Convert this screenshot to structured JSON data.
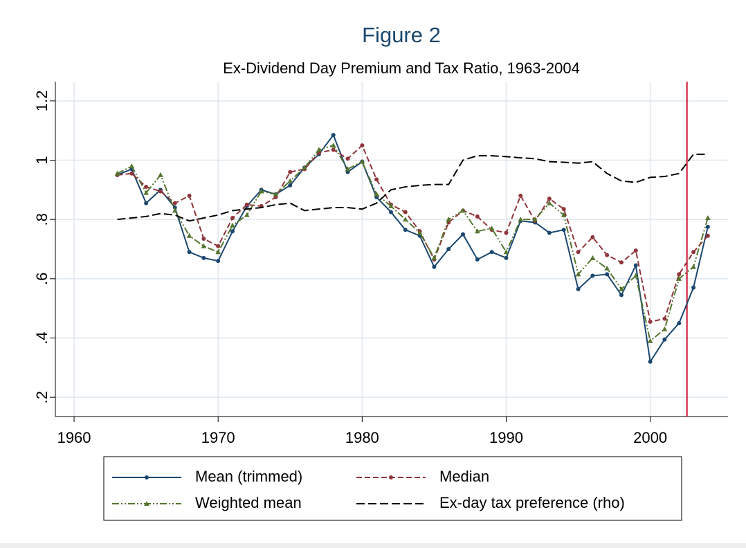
{
  "chart_data": {
    "type": "line",
    "title": "Figure 2",
    "subtitle": "Ex-Dividend Day Premium and Tax Ratio, 1963-2004",
    "x": [
      1963,
      1964,
      1965,
      1966,
      1967,
      1968,
      1969,
      1970,
      1971,
      1972,
      1973,
      1974,
      1975,
      1976,
      1977,
      1978,
      1979,
      1980,
      1981,
      1982,
      1983,
      1984,
      1985,
      1986,
      1987,
      1988,
      1989,
      1990,
      1991,
      1992,
      1993,
      1994,
      1995,
      1996,
      1997,
      1998,
      1999,
      2000,
      2001,
      2002,
      2003,
      2004
    ],
    "series": [
      {
        "name": "Mean (trimmed)",
        "color": "#1a476f",
        "style": "solid",
        "marker": "circle",
        "values": [
          0.95,
          0.97,
          0.855,
          0.9,
          0.84,
          0.69,
          0.67,
          0.66,
          0.76,
          0.845,
          0.9,
          0.885,
          0.915,
          0.975,
          1.02,
          1.085,
          0.96,
          0.995,
          0.875,
          0.825,
          0.765,
          0.745,
          0.64,
          0.7,
          0.75,
          0.665,
          0.69,
          0.67,
          0.795,
          0.79,
          0.755,
          0.765,
          0.565,
          0.61,
          0.615,
          0.545,
          0.645,
          0.32,
          0.395,
          0.45,
          0.57,
          0.775
        ]
      },
      {
        "name": "Median",
        "color": "#90353b",
        "style": "dashed",
        "marker": "circle",
        "values": [
          0.95,
          0.955,
          0.91,
          0.895,
          0.855,
          0.88,
          0.735,
          0.71,
          0.805,
          0.85,
          0.845,
          0.875,
          0.96,
          0.97,
          1.025,
          1.035,
          1.005,
          1.05,
          0.935,
          0.85,
          0.825,
          0.76,
          0.665,
          0.79,
          0.83,
          0.81,
          0.765,
          0.755,
          0.88,
          0.795,
          0.87,
          0.835,
          0.69,
          0.74,
          0.68,
          0.655,
          0.695,
          0.455,
          0.465,
          0.615,
          0.69,
          0.745
        ]
      },
      {
        "name": "Weighted mean",
        "color": "#55752f",
        "style": "dashdot",
        "marker": "triangle",
        "values": [
          0.955,
          0.98,
          0.89,
          0.95,
          0.83,
          0.745,
          0.71,
          0.69,
          0.78,
          0.815,
          0.895,
          0.885,
          0.93,
          0.975,
          1.035,
          1.05,
          0.97,
          0.995,
          0.885,
          0.845,
          0.8,
          0.755,
          0.67,
          0.8,
          0.83,
          0.76,
          0.77,
          0.69,
          0.8,
          0.8,
          0.855,
          0.815,
          0.615,
          0.67,
          0.635,
          0.565,
          0.61,
          0.39,
          0.43,
          0.6,
          0.64,
          0.805
        ]
      },
      {
        "name": "Ex-day tax preference (rho)",
        "color": "#000000",
        "style": "longdash",
        "marker": "none",
        "values": [
          0.8,
          0.805,
          0.81,
          0.82,
          0.815,
          0.795,
          0.805,
          0.815,
          0.83,
          0.835,
          0.84,
          0.85,
          0.855,
          0.83,
          0.835,
          0.84,
          0.84,
          0.835,
          0.855,
          0.9,
          0.91,
          0.915,
          0.918,
          0.918,
          1.0,
          1.015,
          1.015,
          1.012,
          1.008,
          1.005,
          0.995,
          0.993,
          0.99,
          0.995,
          0.955,
          0.93,
          0.925,
          0.942,
          0.945,
          0.955,
          1.02,
          1.02
        ]
      }
    ],
    "xlim": [
      1958.7,
      2005.4
    ],
    "xticks": [
      1960,
      1970,
      1980,
      1990,
      2000
    ],
    "ylim": [
      0.135,
      1.265
    ],
    "yticks": [
      {
        "value": 0.2,
        "label": ".2"
      },
      {
        "value": 0.4,
        "label": ".4"
      },
      {
        "value": 0.6,
        "label": ".6"
      },
      {
        "value": 0.8,
        "label": ".8"
      },
      1,
      1.2
    ],
    "grid": true,
    "vline": {
      "x": 2002.55,
      "color": "#c8102e"
    },
    "legend": "bottom"
  }
}
